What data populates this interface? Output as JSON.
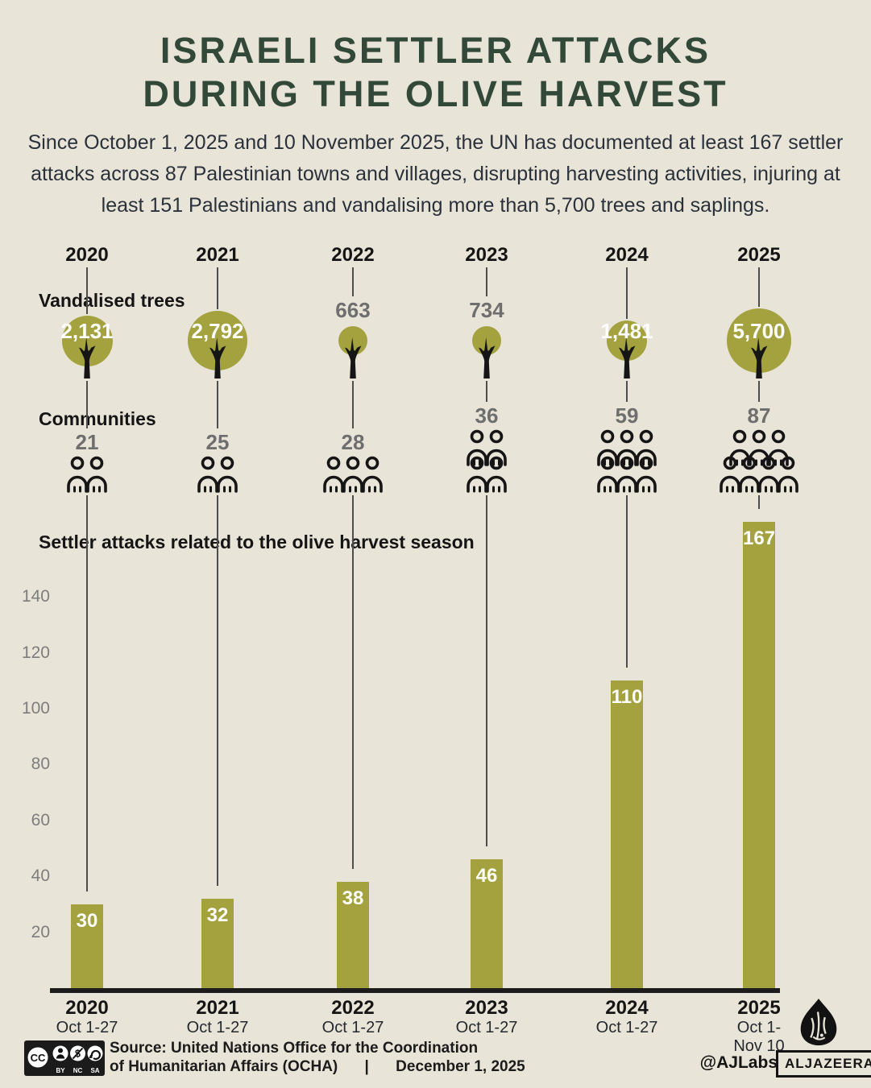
{
  "header": {
    "title_line1": "ISRAELI SETTLER ATTACKS",
    "title_line2": "DURING THE OLIVE HARVEST",
    "subtitle": "Since October 1, 2025 and 10 November 2025,  the UN has documented at least 167 settler attacks across 87 Palestinian towns and villages, disrupting harvesting activities, injuring at least 151 Palestinians and vandalising more than 5,700 trees and saplings."
  },
  "labels": {
    "trees": "Vandalised trees",
    "communities": "Communities",
    "attacks": "Settler attacks related to the olive harvest season"
  },
  "chart_data": {
    "type": "bar",
    "title": "Settler attacks related to the olive harvest season",
    "x": [
      "2020",
      "2021",
      "2022",
      "2023",
      "2024",
      "2025"
    ],
    "x_sublabels": [
      [
        "Oct 1-27"
      ],
      [
        "Oct 1-27"
      ],
      [
        "Oct 1-27"
      ],
      [
        "Oct 1-27"
      ],
      [
        "Oct 1-27"
      ],
      [
        "Oct 1-",
        "Nov 10"
      ]
    ],
    "series": [
      {
        "name": "Vandalised trees",
        "values": [
          2131,
          2792,
          663,
          734,
          1481,
          5700
        ],
        "labels": [
          "2,131",
          "2,792",
          "663",
          "734",
          "1,481",
          "5,700"
        ]
      },
      {
        "name": "Communities",
        "values": [
          21,
          25,
          28,
          36,
          59,
          87
        ]
      },
      {
        "name": "Settler attacks related to the olive harvest season",
        "values": [
          30,
          32,
          38,
          46,
          110,
          167
        ]
      }
    ],
    "yticks": [
      20,
      40,
      60,
      80,
      100,
      120,
      140
    ],
    "ylim": [
      0,
      175
    ],
    "legend_position": "none",
    "grid": false,
    "pictogram": {
      "tree_diameters": [
        63,
        74,
        36,
        36,
        50,
        80
      ],
      "tree_label_inside": [
        true,
        true,
        false,
        false,
        true,
        true
      ],
      "people_rows": [
        [
          2
        ],
        [
          2
        ],
        [
          3
        ],
        [
          2,
          2
        ],
        [
          3,
          3
        ],
        [
          3,
          4
        ]
      ]
    },
    "colors": {
      "olive": "#a4a23e",
      "title_green": "#32493a",
      "background": "#e8e4d7",
      "gray_value": "#6e6e6e"
    }
  },
  "footer": {
    "license": "CC BY NC SA",
    "license_parts": {
      "cc": "CC",
      "by": "BY",
      "nc": "NC",
      "sa": "SA"
    },
    "source_line1": "Source:  United Nations Office for the Coordination",
    "source_line2": "of Humanitarian Affairs (OCHA)",
    "separator": "|",
    "date": "December 1, 2025",
    "credit": "@AJLabs",
    "brand": "ALJAZEERA"
  }
}
